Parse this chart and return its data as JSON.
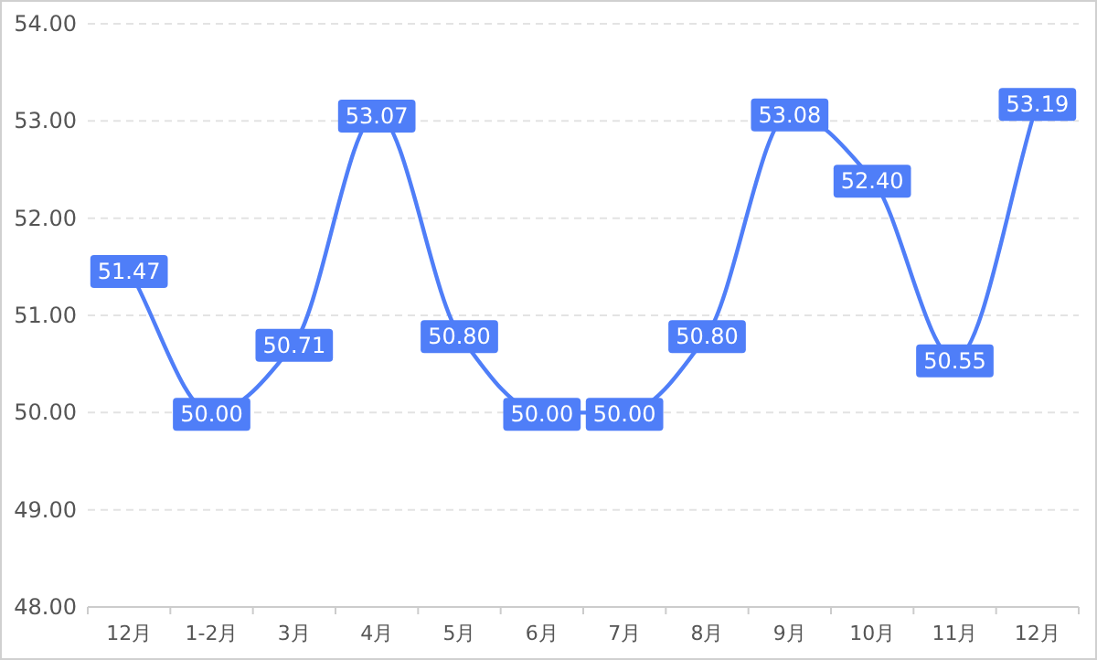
{
  "chart_data": {
    "type": "line",
    "categories": [
      "12月",
      "1-2月",
      "3月",
      "4月",
      "5月",
      "6月",
      "7月",
      "8月",
      "9月",
      "10月",
      "11月",
      "12月"
    ],
    "series": [
      {
        "color": "#4f7ef8",
        "values": [
          51.47,
          50.0,
          50.71,
          53.07,
          50.8,
          50.0,
          50.0,
          50.8,
          53.08,
          52.4,
          50.55,
          53.19
        ],
        "value_labels": [
          "51.47",
          "50.00",
          "50.71",
          "53.07",
          "50.80",
          "50.00",
          "50.00",
          "50.80",
          "53.08",
          "52.40",
          "50.55",
          "53.19"
        ]
      }
    ],
    "ylim": [
      48,
      54
    ],
    "yticks": [
      {
        "value": 48,
        "label": "48.00"
      },
      {
        "value": 49,
        "label": "49.00"
      },
      {
        "value": 50,
        "label": "50.00"
      },
      {
        "value": 51,
        "label": "51.00"
      },
      {
        "value": 52,
        "label": "52.00"
      },
      {
        "value": 53,
        "label": "53.00"
      },
      {
        "value": 54,
        "label": "54.00"
      }
    ],
    "grid": "y",
    "marker": "square",
    "line_style": "solid"
  }
}
